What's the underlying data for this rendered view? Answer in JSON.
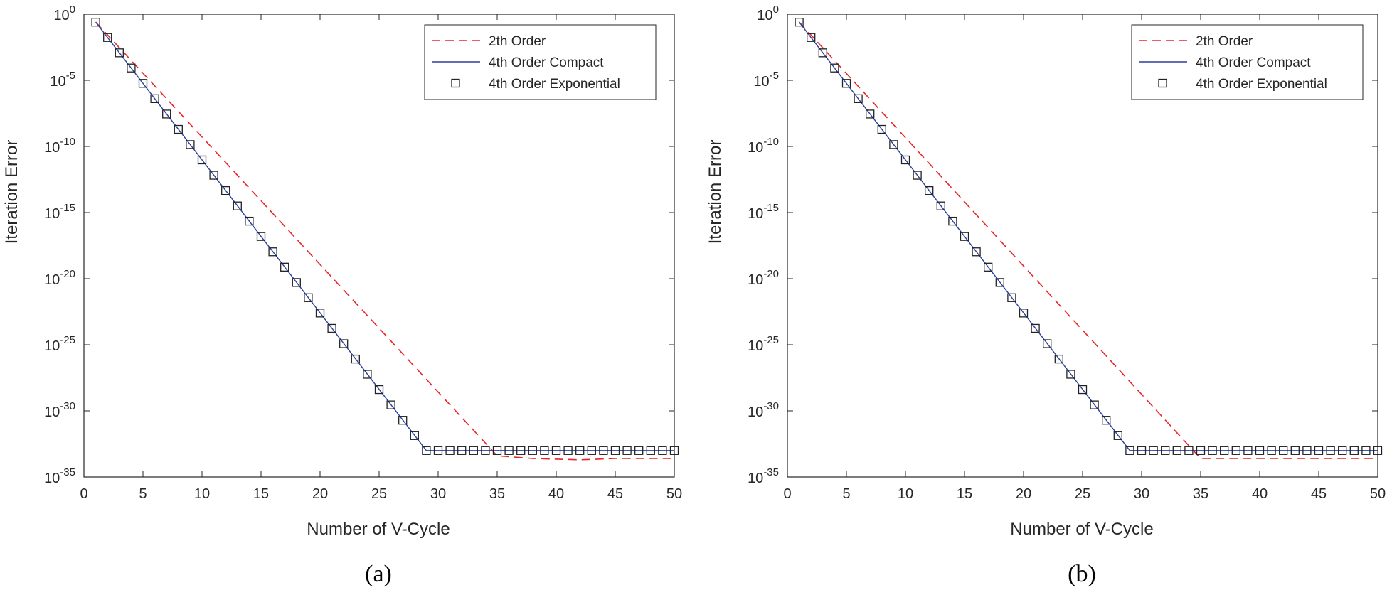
{
  "chart_data": [
    {
      "type": "line",
      "panel": "a",
      "caption": "(a)",
      "xlabel": "Number of V-Cycle",
      "ylabel": "Iteration Error",
      "xlim": [
        0,
        50
      ],
      "ylim_exp": [
        -35,
        0
      ],
      "yscale": "log",
      "x_ticks": [
        0,
        5,
        10,
        15,
        20,
        25,
        30,
        35,
        40,
        45,
        50
      ],
      "y_tick_exponents": [
        0,
        -5,
        -10,
        -15,
        -20,
        -25,
        -30,
        -35
      ],
      "y_tick_base": "10",
      "legend_position": "top-right",
      "x": [
        1,
        2,
        3,
        4,
        5,
        6,
        7,
        8,
        9,
        10,
        11,
        12,
        13,
        14,
        15,
        16,
        17,
        18,
        19,
        20,
        21,
        22,
        23,
        24,
        25,
        26,
        27,
        28,
        29,
        30,
        31,
        32,
        33,
        34,
        35,
        36,
        37,
        38,
        39,
        40,
        41,
        42,
        43,
        44,
        45,
        50
      ],
      "series": [
        {
          "name": "2th Order",
          "style": "dashed",
          "color": "#e8262a",
          "x": [
            1,
            35,
            38,
            42,
            45,
            50
          ],
          "log10_values": [
            -0.6,
            -33.4,
            -33.6,
            -33.7,
            -33.6,
            -33.6
          ]
        },
        {
          "name": "4th Order Compact",
          "style": "solid",
          "color": "#2a3f9d",
          "x": [
            1,
            29,
            50
          ],
          "log10_values": [
            -0.6,
            -33.0,
            -33.0
          ]
        },
        {
          "name": "4th Order Exponential",
          "style": "square-marker",
          "color": "#222222",
          "x": [
            1,
            2,
            3,
            4,
            5,
            6,
            7,
            8,
            9,
            10,
            11,
            12,
            13,
            14,
            15,
            16,
            17,
            18,
            19,
            20,
            21,
            22,
            23,
            24,
            25,
            26,
            27,
            28,
            29,
            30,
            31,
            32,
            33,
            34,
            35,
            36,
            37,
            38,
            39,
            40,
            41,
            42,
            43,
            44,
            45,
            46,
            47,
            48,
            49,
            50
          ],
          "log10_values": [
            -0.6,
            -1.76,
            -2.92,
            -4.07,
            -5.23,
            -6.39,
            -7.55,
            -8.71,
            -9.86,
            -11.02,
            -12.18,
            -13.34,
            -14.5,
            -15.65,
            -16.81,
            -17.97,
            -19.13,
            -20.29,
            -21.44,
            -22.6,
            -23.76,
            -24.92,
            -26.08,
            -27.23,
            -28.39,
            -29.55,
            -30.71,
            -31.87,
            -33.0,
            -33.0,
            -33.0,
            -33.0,
            -33.0,
            -33.0,
            -33.0,
            -33.0,
            -33.0,
            -33.0,
            -33.0,
            -33.0,
            -33.0,
            -33.0,
            -33.0,
            -33.0,
            -33.0,
            -33.0,
            -33.0,
            -33.0,
            -33.0,
            -33.0
          ]
        }
      ]
    },
    {
      "type": "line",
      "panel": "b",
      "caption": "(b)",
      "xlabel": "Number of V-Cycle",
      "ylabel": "Iteration Error",
      "xlim": [
        0,
        50
      ],
      "ylim_exp": [
        -35,
        0
      ],
      "yscale": "log",
      "x_ticks": [
        0,
        5,
        10,
        15,
        20,
        25,
        30,
        35,
        40,
        45,
        50
      ],
      "y_tick_exponents": [
        0,
        -5,
        -10,
        -15,
        -20,
        -25,
        -30,
        -35
      ],
      "y_tick_base": "10",
      "legend_position": "top-right",
      "series": [
        {
          "name": "2th Order",
          "style": "dashed",
          "color": "#e8262a",
          "x": [
            1,
            35,
            38,
            42,
            45,
            50
          ],
          "log10_values": [
            -0.6,
            -33.6,
            -33.6,
            -33.6,
            -33.6,
            -33.6
          ]
        },
        {
          "name": "4th Order Compact",
          "style": "solid",
          "color": "#2a3f9d",
          "x": [
            1,
            29,
            50
          ],
          "log10_values": [
            -0.6,
            -33.0,
            -33.0
          ]
        },
        {
          "name": "4th Order Exponential",
          "style": "square-marker",
          "color": "#222222",
          "x": [
            1,
            2,
            3,
            4,
            5,
            6,
            7,
            8,
            9,
            10,
            11,
            12,
            13,
            14,
            15,
            16,
            17,
            18,
            19,
            20,
            21,
            22,
            23,
            24,
            25,
            26,
            27,
            28,
            29,
            30,
            31,
            32,
            33,
            34,
            35,
            36,
            37,
            38,
            39,
            40,
            41,
            42,
            43,
            44,
            45,
            46,
            47,
            48,
            49,
            50
          ],
          "log10_values": [
            -0.6,
            -1.76,
            -2.92,
            -4.07,
            -5.23,
            -6.39,
            -7.55,
            -8.71,
            -9.86,
            -11.02,
            -12.18,
            -13.34,
            -14.5,
            -15.65,
            -16.81,
            -17.97,
            -19.13,
            -20.29,
            -21.44,
            -22.6,
            -23.76,
            -24.92,
            -26.08,
            -27.23,
            -28.39,
            -29.55,
            -30.71,
            -31.87,
            -33.0,
            -33.0,
            -33.0,
            -33.0,
            -33.0,
            -33.0,
            -33.0,
            -33.0,
            -33.0,
            -33.0,
            -33.0,
            -33.0,
            -33.0,
            -33.0,
            -33.0,
            -33.0,
            -33.0,
            -33.0,
            -33.0,
            -33.0,
            -33.0,
            -33.0
          ]
        }
      ]
    }
  ]
}
